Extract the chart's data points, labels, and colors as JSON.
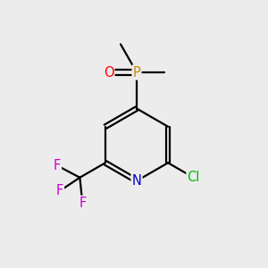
{
  "background_color": "#ececec",
  "atom_colors": {
    "C": "#000000",
    "N": "#0000cd",
    "O": "#ff0000",
    "P": "#cc8800",
    "F": "#cc00cc",
    "Cl": "#00bb00"
  },
  "bond_color": "#000000",
  "bond_width": 1.6,
  "font_size": 10.5,
  "figsize": [
    3.0,
    3.0
  ],
  "dpi": 100
}
